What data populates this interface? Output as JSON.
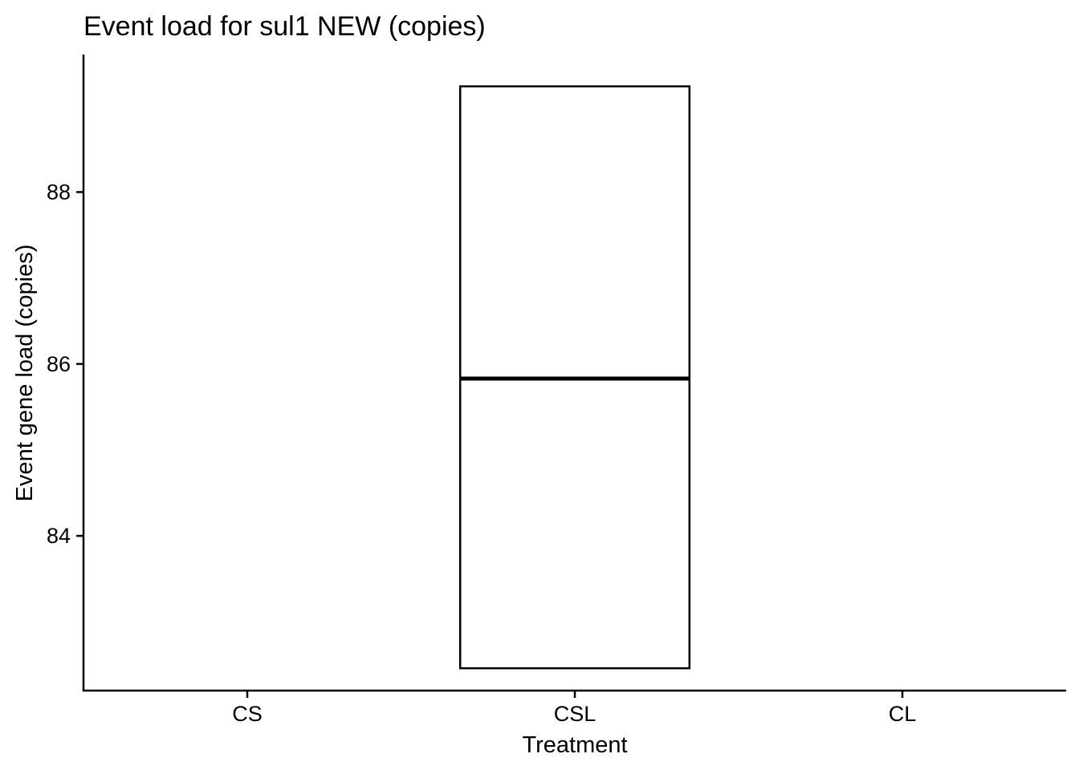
{
  "chart_data": {
    "type": "boxplot",
    "title": "Event load for sul1 NEW (copies)",
    "xlabel": "Treatment",
    "ylabel": "Event gene load (copies)",
    "categories": [
      "CS",
      "CSL",
      "CL"
    ],
    "yticks": [
      84,
      86,
      88
    ],
    "ylim": [
      82.2,
      89.6
    ],
    "boxes": [
      {
        "category": "CSL",
        "lower": 82.46,
        "median": 85.83,
        "upper": 89.23
      }
    ],
    "grid": false,
    "legend": "none"
  }
}
